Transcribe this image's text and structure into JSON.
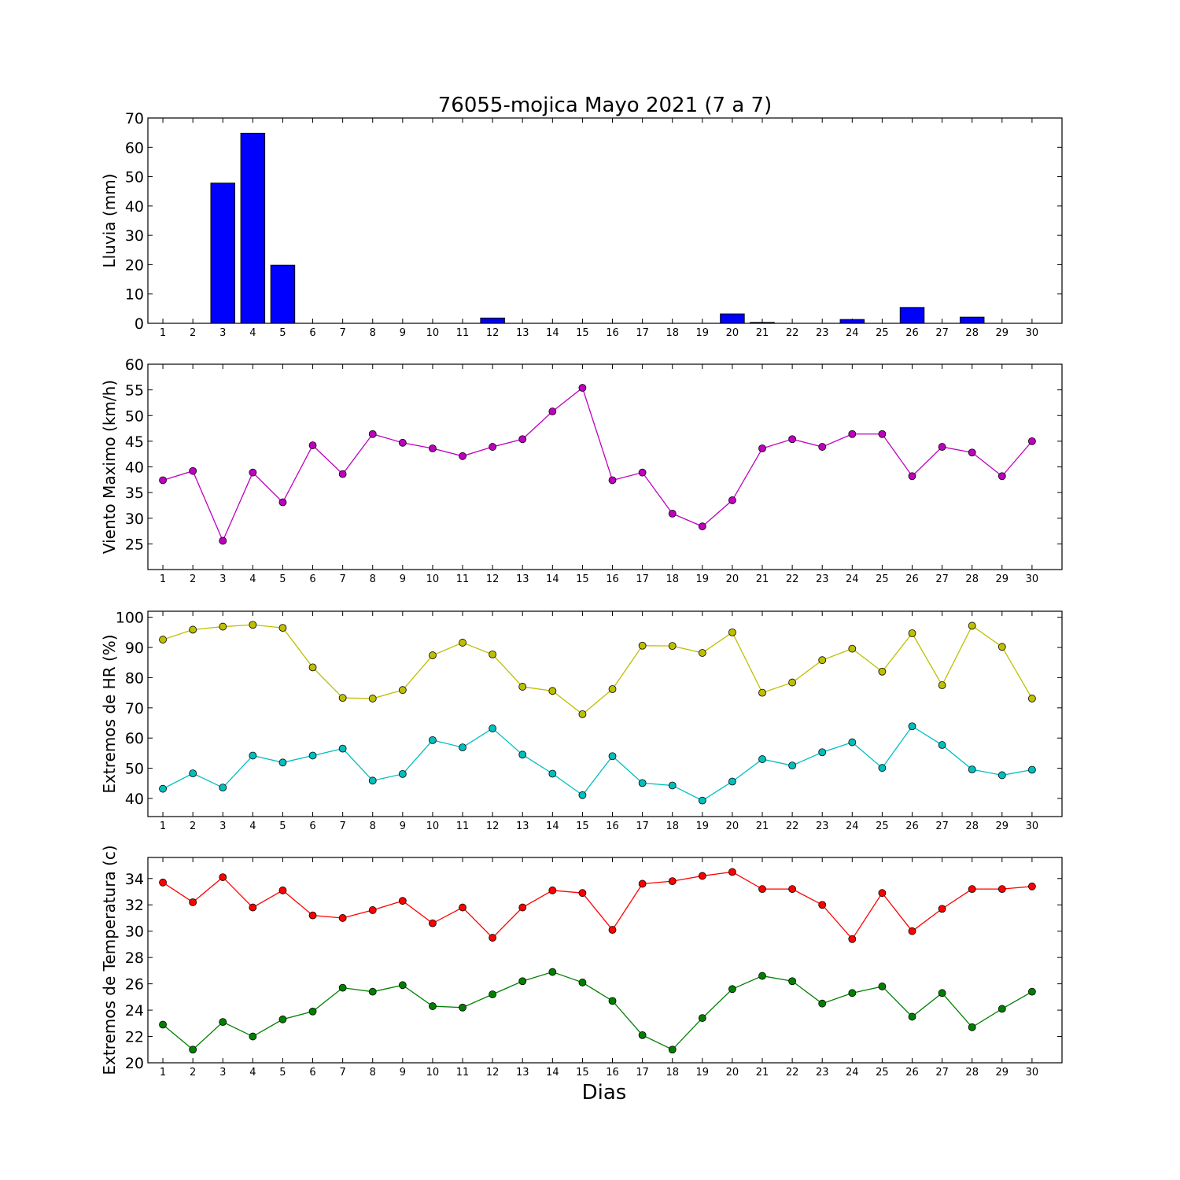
{
  "figure": {
    "title": "76055-mojica Mayo 2021  (7 a 7)",
    "xlabel": "Dias"
  },
  "chart_data": [
    {
      "type": "bar",
      "ylabel": "Lluvia (mm)",
      "ylim": [
        0,
        70
      ],
      "yticks": [
        0,
        10,
        20,
        30,
        40,
        50,
        60,
        70
      ],
      "categories": [
        1,
        2,
        3,
        4,
        5,
        6,
        7,
        8,
        9,
        10,
        11,
        12,
        13,
        14,
        15,
        16,
        17,
        18,
        19,
        20,
        21,
        22,
        23,
        24,
        25,
        26,
        27,
        28,
        29,
        30
      ],
      "series": [
        {
          "color": "#0000ff",
          "values": [
            0,
            0,
            47.8,
            64.8,
            19.8,
            0,
            0,
            0,
            0,
            0,
            0,
            1.8,
            0,
            0,
            0,
            0,
            0,
            0,
            0,
            3.2,
            0.3,
            0,
            0,
            1.3,
            0,
            5.4,
            0,
            2.1,
            0,
            0
          ]
        }
      ]
    },
    {
      "type": "line",
      "ylabel": "Viento Maximo (km/h)",
      "ylim": [
        20,
        60
      ],
      "yticks": [
        25,
        30,
        35,
        40,
        45,
        50,
        55,
        60
      ],
      "categories": [
        1,
        2,
        3,
        4,
        5,
        6,
        7,
        8,
        9,
        10,
        11,
        12,
        13,
        14,
        15,
        16,
        17,
        18,
        19,
        20,
        21,
        22,
        23,
        24,
        25,
        26,
        27,
        28,
        29,
        30
      ],
      "series": [
        {
          "color": "#bf00bf",
          "values": [
            37.4,
            39.2,
            25.6,
            38.9,
            33.1,
            44.2,
            38.6,
            46.4,
            44.7,
            43.6,
            42.1,
            43.9,
            45.4,
            50.8,
            55.4,
            37.4,
            38.9,
            30.9,
            28.4,
            33.5,
            43.6,
            45.4,
            43.9,
            46.4,
            46.4,
            38.2,
            43.9,
            42.8,
            38.2,
            45.0
          ]
        }
      ]
    },
    {
      "type": "line",
      "ylabel": "Extremos de HR (%)",
      "ylim": [
        34,
        102
      ],
      "yticks": [
        40,
        50,
        60,
        70,
        80,
        90,
        100
      ],
      "categories": [
        1,
        2,
        3,
        4,
        5,
        6,
        7,
        8,
        9,
        10,
        11,
        12,
        13,
        14,
        15,
        16,
        17,
        18,
        19,
        20,
        21,
        22,
        23,
        24,
        25,
        26,
        27,
        28,
        29,
        30
      ],
      "series": [
        {
          "color": "#bfbf00",
          "values": [
            92.6,
            95.9,
            96.9,
            97.5,
            96.5,
            83.4,
            73.3,
            73.1,
            75.9,
            87.4,
            91.6,
            87.7,
            77.0,
            75.6,
            67.9,
            76.2,
            90.6,
            90.5,
            88.2,
            95.0,
            75.0,
            78.4,
            85.8,
            89.6,
            82.0,
            94.7,
            77.5,
            97.2,
            90.2,
            73.1
          ]
        },
        {
          "color": "#00bfbf",
          "values": [
            43.2,
            48.3,
            43.6,
            54.2,
            51.9,
            54.2,
            56.5,
            45.9,
            48.1,
            59.3,
            56.9,
            63.2,
            54.5,
            48.2,
            41.1,
            54.0,
            45.1,
            44.3,
            39.3,
            45.6,
            53.0,
            50.9,
            55.3,
            58.6,
            50.1,
            63.9,
            57.7,
            49.6,
            47.7,
            49.5
          ]
        }
      ]
    },
    {
      "type": "line",
      "ylabel": "Extremos de Temperatura (c)",
      "ylim": [
        20,
        35.6
      ],
      "yticks": [
        20,
        22,
        24,
        26,
        28,
        30,
        32,
        34
      ],
      "categories": [
        1,
        2,
        3,
        4,
        5,
        6,
        7,
        8,
        9,
        10,
        11,
        12,
        13,
        14,
        15,
        16,
        17,
        18,
        19,
        20,
        21,
        22,
        23,
        24,
        25,
        26,
        27,
        28,
        29,
        30
      ],
      "series": [
        {
          "color": "#ff0000",
          "values": [
            33.7,
            32.2,
            34.1,
            31.8,
            33.1,
            31.2,
            31.0,
            31.6,
            32.3,
            30.6,
            31.8,
            29.5,
            31.8,
            33.1,
            32.9,
            30.1,
            33.6,
            33.8,
            34.2,
            34.5,
            33.2,
            33.2,
            32.0,
            29.4,
            32.9,
            30.0,
            31.7,
            33.2,
            33.2,
            33.4
          ]
        },
        {
          "color": "#008000",
          "values": [
            22.9,
            21.0,
            23.1,
            22.0,
            23.3,
            23.9,
            25.7,
            25.4,
            25.9,
            24.3,
            24.2,
            25.2,
            26.2,
            26.9,
            26.1,
            24.7,
            22.1,
            21.0,
            23.4,
            25.6,
            26.6,
            26.2,
            24.5,
            25.3,
            25.8,
            23.5,
            25.3,
            22.7,
            24.1,
            25.4
          ]
        }
      ]
    }
  ]
}
